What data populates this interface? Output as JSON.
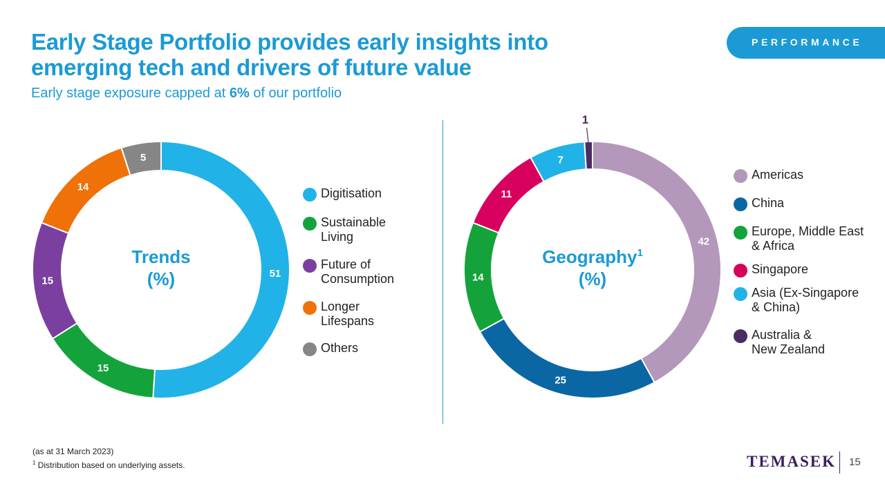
{
  "header": {
    "title": "Early Stage Portfolio provides early insights into emerging tech and drivers of future value",
    "subtitle_pre": "Early stage exposure capped at ",
    "subtitle_bold": "6%",
    "subtitle_post": " of our portfolio",
    "section_tag": "PERFORMANCE"
  },
  "chart_data": [
    {
      "type": "pie",
      "title_line1": "Trends",
      "title_line2": "(%)",
      "categories": [
        "Digitisation",
        "Sustainable Living",
        "Future of Consumption",
        "Longer Lifespans",
        "Others"
      ],
      "legend_lines": [
        [
          "Digitisation"
        ],
        [
          "Sustainable",
          "Living"
        ],
        [
          "Future of",
          "Consumption"
        ],
        [
          "Longer",
          "Lifespans"
        ],
        [
          "Others"
        ]
      ],
      "values": [
        51,
        15,
        15,
        14,
        5
      ],
      "colors": [
        "#21b3e7",
        "#14a33b",
        "#7b3fa0",
        "#ef7108",
        "#868686"
      ],
      "legend_placement": "right"
    },
    {
      "type": "pie",
      "title_line1": "Geography",
      "title_sup": "1",
      "title_line2": "(%)",
      "categories": [
        "Americas",
        "China",
        "Europe, Middle East & Africa",
        "Singapore",
        "Asia (Ex-Singapore & China)",
        "Australia & New Zealand"
      ],
      "legend_lines": [
        [
          "Americas"
        ],
        [
          "China"
        ],
        [
          "Europe, Middle East",
          "& Africa"
        ],
        [
          "Singapore"
        ],
        [
          "Asia (Ex-Singapore",
          "& China)"
        ],
        [
          "Australia &",
          "New Zealand"
        ]
      ],
      "values": [
        42,
        25,
        14,
        11,
        7,
        1
      ],
      "colors": [
        "#b398bb",
        "#0a67a3",
        "#14a33b",
        "#d8005e",
        "#21b3e7",
        "#4a2c62"
      ],
      "legend_placement": "right"
    }
  ],
  "footer": {
    "date_note": "(as at 31 March 2023)",
    "footnote_sup": "1",
    "footnote": " Distribution  based on underlying  assets.",
    "logo": "TEMASEK",
    "page_number": "15"
  }
}
